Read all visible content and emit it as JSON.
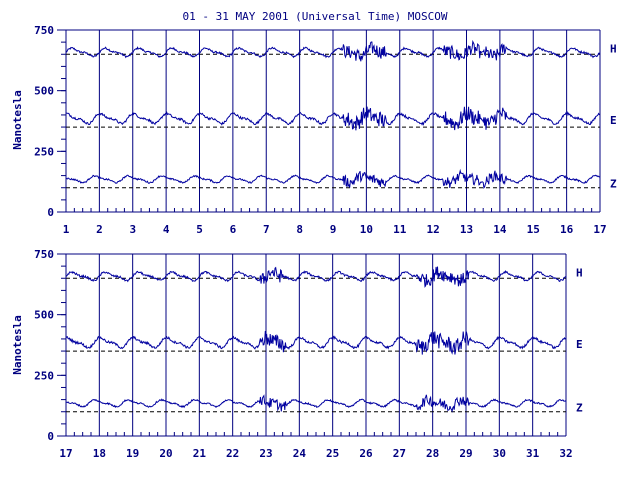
{
  "chart_data": {
    "title": "01 - 31 MAY 2001 (Universal Time) MOSCOW",
    "ylabel": "Nanotesla",
    "colors": {
      "trace": "#0000a0",
      "axes": "#000080",
      "baseline": "#000000"
    },
    "panels": [
      {
        "type": "line",
        "xlim": [
          1,
          17
        ],
        "ylim": [
          0,
          750
        ],
        "yticks": [
          "0",
          "250",
          "500",
          "750"
        ],
        "xticks": [
          "1",
          "2",
          "3",
          "4",
          "5",
          "6",
          "7",
          "8",
          "9",
          "10",
          "11",
          "12",
          "13",
          "14",
          "15",
          "16",
          "17"
        ],
        "grid": "vertical lines at each day",
        "series": [
          {
            "name": "H",
            "baseline": 650
          },
          {
            "name": "E",
            "baseline": 350
          },
          {
            "name": "Z",
            "baseline": 100
          }
        ]
      },
      {
        "type": "line",
        "xlim": [
          17,
          32
        ],
        "ylim": [
          0,
          750
        ],
        "yticks": [
          "0",
          "250",
          "500",
          "750"
        ],
        "xticks": [
          "17",
          "18",
          "19",
          "20",
          "21",
          "22",
          "23",
          "24",
          "25",
          "26",
          "27",
          "28",
          "29",
          "30",
          "31",
          "32"
        ],
        "grid": "vertical lines at each day",
        "series": [
          {
            "name": "H",
            "baseline": 650
          },
          {
            "name": "E",
            "baseline": 350
          },
          {
            "name": "Z",
            "baseline": 100
          }
        ]
      }
    ]
  }
}
